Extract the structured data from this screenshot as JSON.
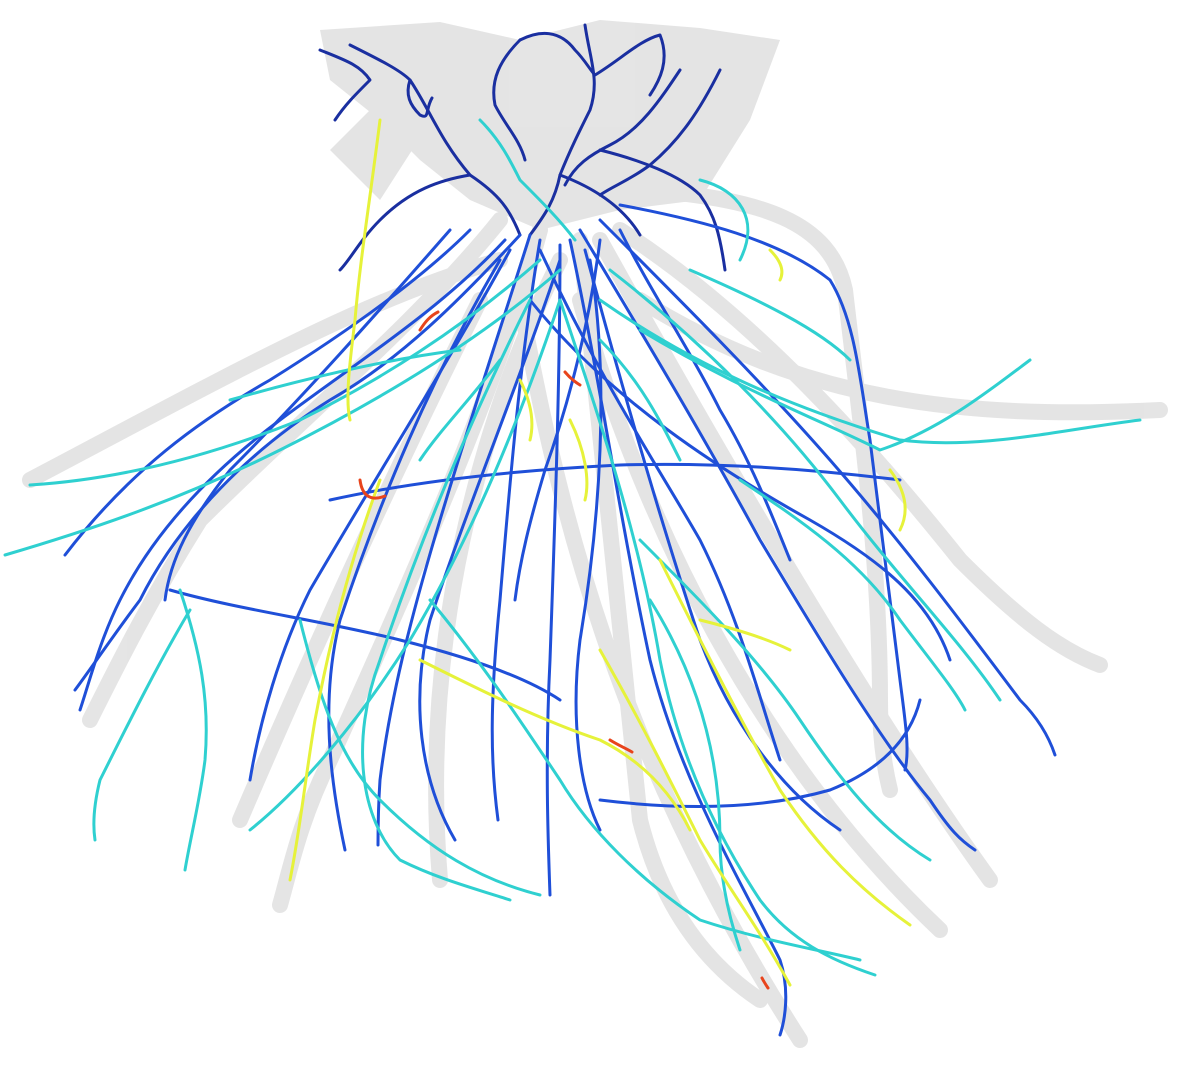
{
  "figure": {
    "subject": "root-system-architecture-reconstruction",
    "colors": {
      "background": "#ffffff",
      "root_mask": "#cfcfcf",
      "order_1_dark": "#1a2fa0",
      "order_1": "#1f4fd8",
      "order_2": "#2fd0d0",
      "order_3": "#e6f23a",
      "order_4": "#e8441c"
    }
  }
}
